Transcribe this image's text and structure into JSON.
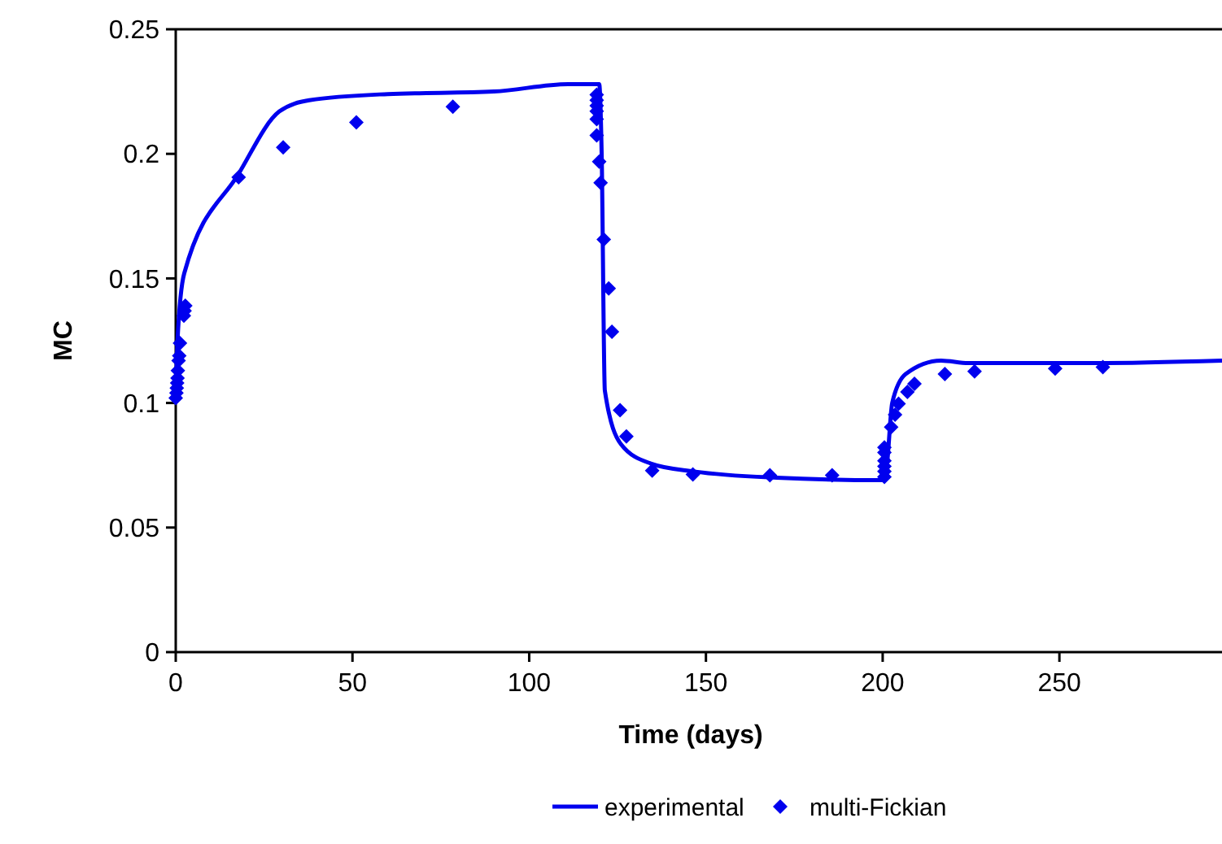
{
  "chart_data": {
    "type": "line",
    "xlabel": "Time (days)",
    "ylabel": "MC",
    "xlim": [
      0,
      296
    ],
    "ylim": [
      0,
      0.25
    ],
    "xticks": [
      0,
      50,
      100,
      150,
      200,
      250
    ],
    "yticks": [
      0,
      0.05,
      0.1,
      0.15,
      0.2,
      0.25
    ],
    "grid": false,
    "legend": "bottom",
    "series": [
      {
        "name": "experimental",
        "color": "#0000ee",
        "marker": "none",
        "line_style": "solid",
        "x": [
          0,
          0.5,
          2.4,
          17.8,
          29.3,
          37.8,
          60,
          90,
          111,
          119.8,
          120.5,
          121.4,
          126,
          134.4,
          146.7,
          170,
          200.5,
          201.2,
          202.7,
          206.5,
          216.5,
          224.2,
          260,
          296
        ],
        "values": [
          0.103,
          0.125,
          0.152,
          0.192,
          0.217,
          0.2215,
          0.224,
          0.225,
          0.228,
          0.228,
          0.2,
          0.105,
          0.0834,
          0.0757,
          0.0725,
          0.07,
          0.069,
          0.075,
          0.1,
          0.1116,
          0.117,
          0.116,
          0.116,
          0.117
        ]
      },
      {
        "name": "multi-Fickian",
        "type": "scatter",
        "color": "#0000ee",
        "marker": "diamond",
        "x": [
          0,
          0.2,
          0.3,
          0.4,
          0.5,
          0.6,
          0.8,
          1,
          1.2,
          2.3,
          2.5,
          2.7,
          17.8,
          30.4,
          51.1,
          78.4,
          119.1,
          119.1,
          119.1,
          119.1,
          119.1,
          119.1,
          119.8,
          120.2,
          121.1,
          122.5,
          123.4,
          125.7,
          127.5,
          134.8,
          146.3,
          168.1,
          185.7,
          200.5,
          200.5,
          200.5,
          200.5,
          200.5,
          200.5,
          202.4,
          203.5,
          204.5,
          207,
          209,
          217.6,
          226,
          248.8,
          262.3
        ],
        "values": [
          0.102,
          0.104,
          0.106,
          0.108,
          0.11,
          0.113,
          0.117,
          0.119,
          0.124,
          0.135,
          0.137,
          0.139,
          0.1906,
          0.2026,
          0.2126,
          0.2189,
          0.2237,
          0.2215,
          0.2193,
          0.2171,
          0.2139,
          0.2074,
          0.1969,
          0.1884,
          0.1656,
          0.146,
          0.1286,
          0.0971,
          0.0866,
          0.0729,
          0.0713,
          0.071,
          0.071,
          0.0703,
          0.0725,
          0.0746,
          0.0768,
          0.0801,
          0.0822,
          0.0903,
          0.0953,
          0.0997,
          0.1044,
          0.1077,
          0.1116,
          0.1127,
          0.1138,
          0.1144
        ]
      }
    ]
  }
}
